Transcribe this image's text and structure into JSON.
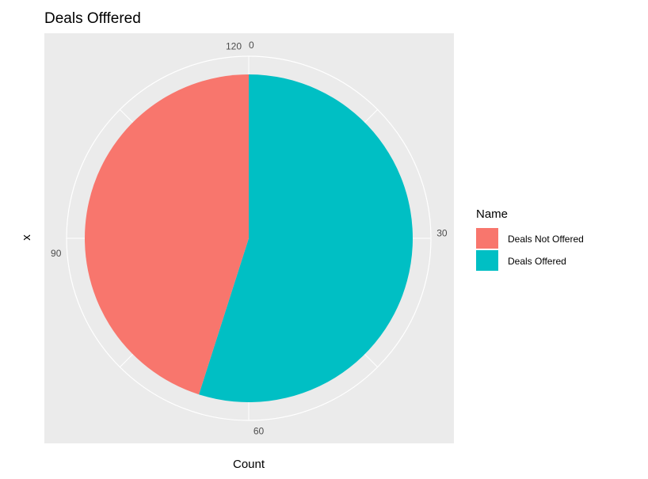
{
  "chart_data": {
    "type": "pie",
    "title": "Deals Offfered",
    "xlabel": "Count",
    "ylabel": "x",
    "theta_ticks": [
      "0",
      "30",
      "60",
      "90",
      "120"
    ],
    "theta_tick_values": [
      0,
      30,
      60,
      90,
      120
    ],
    "theta_max": 122,
    "categories": [
      "Deals Offered",
      "Deals Not Offered"
    ],
    "values": [
      67,
      55
    ],
    "colors": [
      "#00BFC4",
      "#F8766D"
    ],
    "grid": true,
    "legend_position": "right",
    "legend": {
      "title": "Name",
      "entries": [
        {
          "label": "Deals Not Offered",
          "color": "#F8766D"
        },
        {
          "label": "Deals Offered",
          "color": "#00BFC4"
        }
      ]
    },
    "background": "#EBEBEB",
    "grid_color": "#FFFFFF"
  }
}
